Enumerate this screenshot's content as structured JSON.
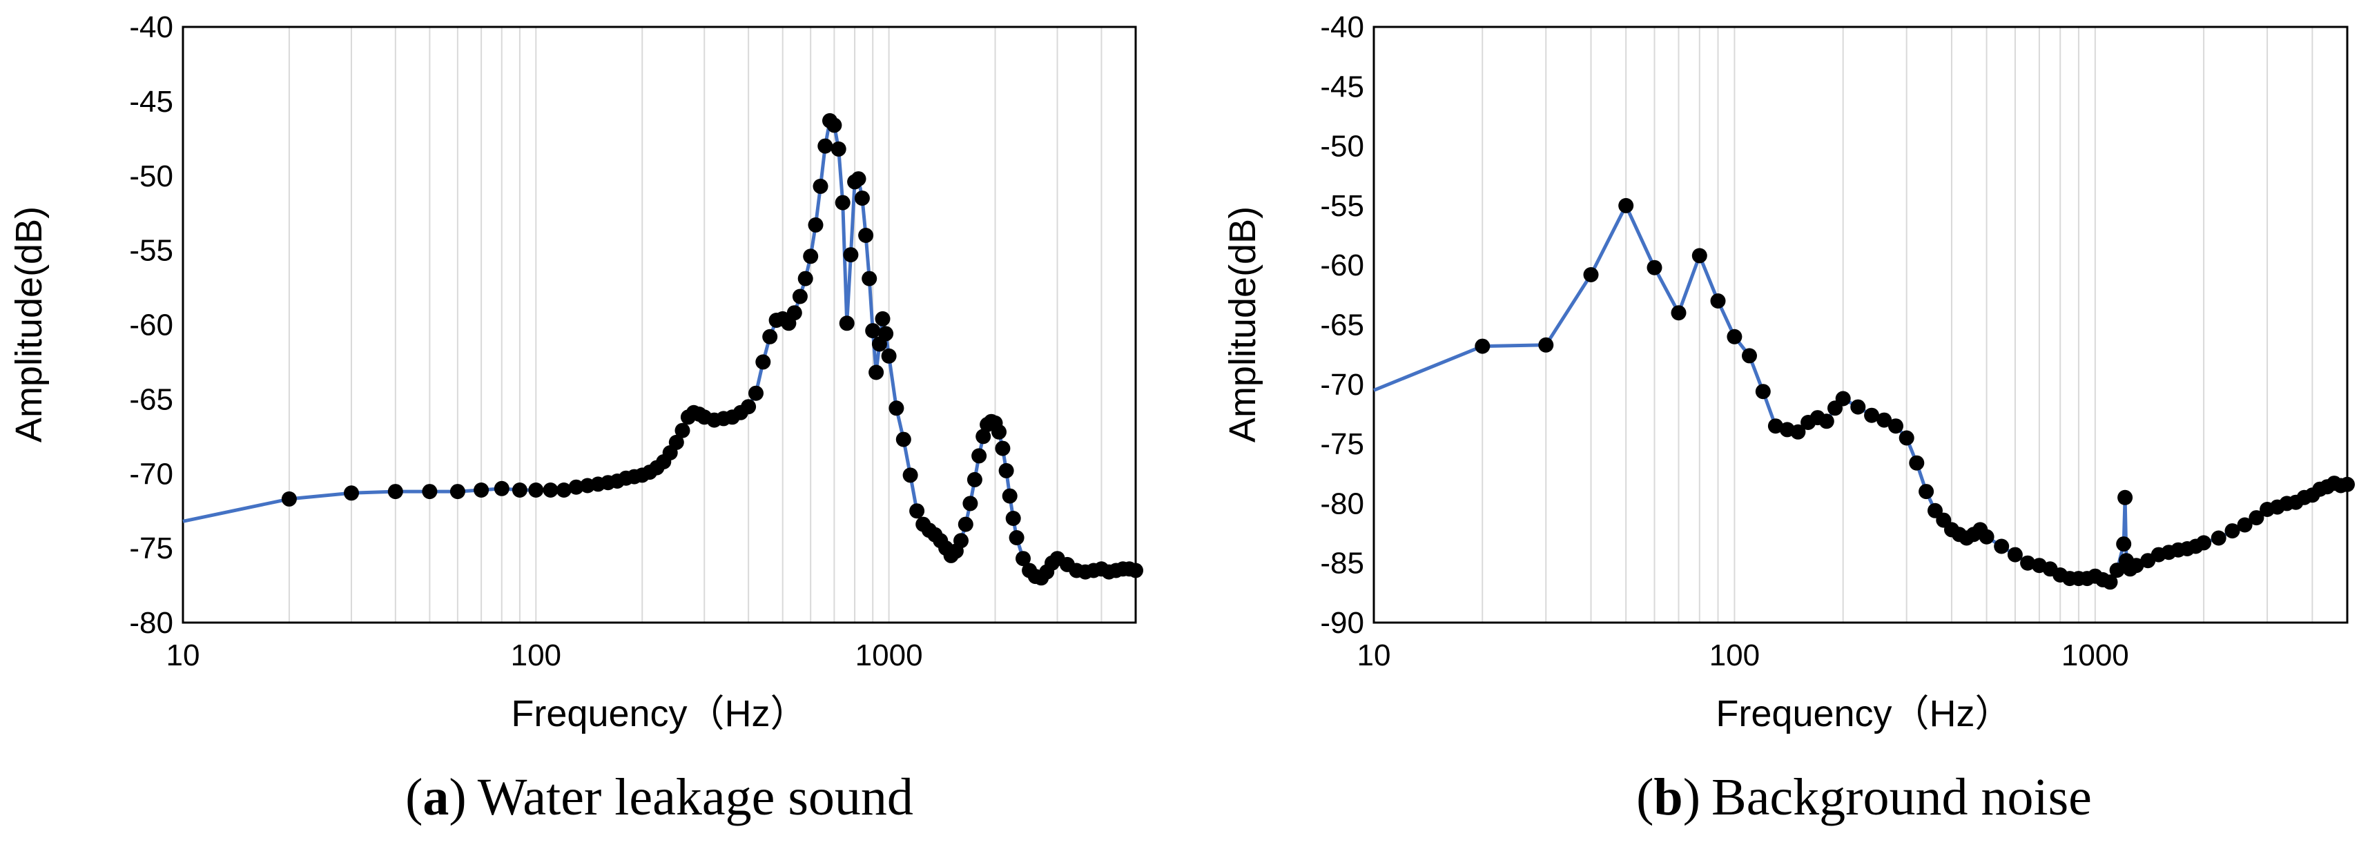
{
  "colors": {
    "line": "#4472C4",
    "marker": "#000000",
    "grid": "#D9D9D9",
    "axis": "#000000"
  },
  "chart_data": [
    {
      "type": "line",
      "caption_letter": "a",
      "caption_text": "Water leakage sound",
      "caption_open": "(",
      "caption_close": ")",
      "xlabel": "Frequency（Hz）",
      "ylabel": "Amplitude(dB)",
      "xscale": "log",
      "xlim": [
        10,
        5000
      ],
      "ylim": [
        -80,
        -40
      ],
      "xticks": [
        10,
        100,
        1000
      ],
      "xtick_labels": [
        "10",
        "100",
        "1000"
      ],
      "yticks": [
        -40,
        -45,
        -50,
        -55,
        -60,
        -65,
        -70,
        -75,
        -80
      ],
      "ytick_labels": [
        "-40",
        "-45",
        "-50",
        "-55",
        "-60",
        "-65",
        "-70",
        "-75",
        "-80"
      ],
      "grid": "vertical minor gridlines (log scale)",
      "series": [
        {
          "marker": "circle",
          "x": [
            10,
            20,
            30,
            40,
            50,
            60,
            70,
            80,
            90,
            100,
            110,
            120,
            130,
            140,
            150,
            160,
            170,
            180,
            190,
            200,
            210,
            220,
            230,
            240,
            250,
            260,
            270,
            280,
            290,
            300,
            320,
            340,
            360,
            380,
            400,
            420,
            440,
            460,
            480,
            500,
            520,
            540,
            560,
            580,
            600,
            620,
            640,
            660,
            680,
            700,
            720,
            740,
            760,
            780,
            800,
            820,
            840,
            860,
            880,
            900,
            920,
            940,
            960,
            980,
            1000,
            1050,
            1100,
            1150,
            1200,
            1250,
            1300,
            1350,
            1400,
            1450,
            1500,
            1550,
            1600,
            1650,
            1700,
            1750,
            1800,
            1850,
            1900,
            1950,
            2000,
            2050,
            2100,
            2150,
            2200,
            2250,
            2300,
            2400,
            2500,
            2600,
            2700,
            2800,
            2900,
            3000,
            3200,
            3400,
            3600,
            3800,
            4000,
            4200,
            4400,
            4600,
            4800,
            5000
          ],
          "y": [
            -73.2,
            -71.7,
            -71.3,
            -71.2,
            -71.2,
            -71.2,
            -71.1,
            -71.0,
            -71.1,
            -71.1,
            -71.1,
            -71.1,
            -70.9,
            -70.8,
            -70.7,
            -70.6,
            -70.5,
            -70.3,
            -70.2,
            -70.1,
            -69.9,
            -69.6,
            -69.2,
            -68.6,
            -67.9,
            -67.1,
            -66.2,
            -65.9,
            -66.0,
            -66.2,
            -66.4,
            -66.3,
            -66.2,
            -65.9,
            -65.5,
            -64.6,
            -62.5,
            -60.8,
            -59.7,
            -59.6,
            -59.9,
            -59.2,
            -58.1,
            -56.9,
            -55.4,
            -53.3,
            -50.7,
            -48.0,
            -46.3,
            -46.6,
            -48.2,
            -51.8,
            -59.9,
            -55.3,
            -50.4,
            -50.2,
            -51.5,
            -54.0,
            -56.9,
            -60.4,
            -63.2,
            -61.3,
            -59.6,
            -60.6,
            -62.1,
            -65.6,
            -67.7,
            -70.1,
            -72.5,
            -73.4,
            -73.8,
            -74.1,
            -74.5,
            -75.0,
            -75.5,
            -75.2,
            -74.5,
            -73.4,
            -72.0,
            -70.4,
            -68.8,
            -67.5,
            -66.7,
            -66.5,
            -66.6,
            -67.2,
            -68.3,
            -69.8,
            -71.5,
            -73.0,
            -74.3,
            -75.7,
            -76.5,
            -76.9,
            -77.0,
            -76.6,
            -76.0,
            -75.7,
            -76.1,
            -76.5,
            -76.6,
            -76.5,
            -76.4,
            -76.6,
            -76.5,
            -76.4,
            -76.4,
            -76.5
          ]
        }
      ]
    },
    {
      "type": "line",
      "caption_letter": "b",
      "caption_text": "Background noise",
      "caption_open": "(",
      "caption_close": ")",
      "xlabel": "Frequency（Hz）",
      "ylabel": "Amplitude(dB)",
      "xscale": "log",
      "xlim": [
        10,
        5000
      ],
      "ylim": [
        -90,
        -40
      ],
      "xticks": [
        10,
        100,
        1000
      ],
      "xtick_labels": [
        "10",
        "100",
        "1000"
      ],
      "yticks": [
        -40,
        -45,
        -50,
        -55,
        -60,
        -65,
        -70,
        -75,
        -80,
        -85,
        -90
      ],
      "ytick_labels": [
        "-40",
        "-45",
        "-50",
        "-55",
        "-60",
        "-65",
        "-70",
        "-75",
        "-80",
        "-85",
        "-90"
      ],
      "grid": "vertical minor gridlines (log scale)",
      "series": [
        {
          "marker": "circle",
          "x": [
            10,
            20,
            30,
            40,
            50,
            60,
            70,
            80,
            90,
            100,
            110,
            120,
            130,
            140,
            150,
            160,
            170,
            180,
            190,
            200,
            220,
            240,
            260,
            280,
            300,
            320,
            340,
            360,
            380,
            400,
            420,
            440,
            460,
            480,
            500,
            550,
            600,
            650,
            700,
            750,
            800,
            850,
            900,
            950,
            1000,
            1050,
            1100,
            1150,
            1200,
            1210,
            1220,
            1250,
            1300,
            1400,
            1500,
            1600,
            1700,
            1800,
            1900,
            2000,
            2200,
            2400,
            2600,
            2800,
            3000,
            3200,
            3400,
            3600,
            3800,
            4000,
            4200,
            4400,
            4600,
            4800,
            5000
          ],
          "y": [
            -70.5,
            -66.8,
            -66.7,
            -60.8,
            -55.0,
            -60.2,
            -64.0,
            -59.2,
            -63.0,
            -66.0,
            -67.6,
            -70.6,
            -73.5,
            -73.8,
            -74.0,
            -73.2,
            -72.8,
            -73.1,
            -72.0,
            -71.2,
            -71.9,
            -72.6,
            -73.0,
            -73.5,
            -74.5,
            -76.6,
            -79.0,
            -80.6,
            -81.4,
            -82.2,
            -82.6,
            -82.9,
            -82.6,
            -82.2,
            -82.8,
            -83.6,
            -84.3,
            -85.0,
            -85.2,
            -85.5,
            -86.0,
            -86.3,
            -86.3,
            -86.3,
            -86.1,
            -86.4,
            -86.6,
            -85.6,
            -83.4,
            -79.5,
            -84.8,
            -85.5,
            -85.2,
            -84.8,
            -84.3,
            -84.1,
            -83.9,
            -83.8,
            -83.6,
            -83.3,
            -82.9,
            -82.3,
            -81.8,
            -81.2,
            -80.5,
            -80.3,
            -80.0,
            -79.9,
            -79.5,
            -79.3,
            -78.8,
            -78.6,
            -78.3,
            -78.5,
            -78.4
          ]
        }
      ]
    }
  ]
}
